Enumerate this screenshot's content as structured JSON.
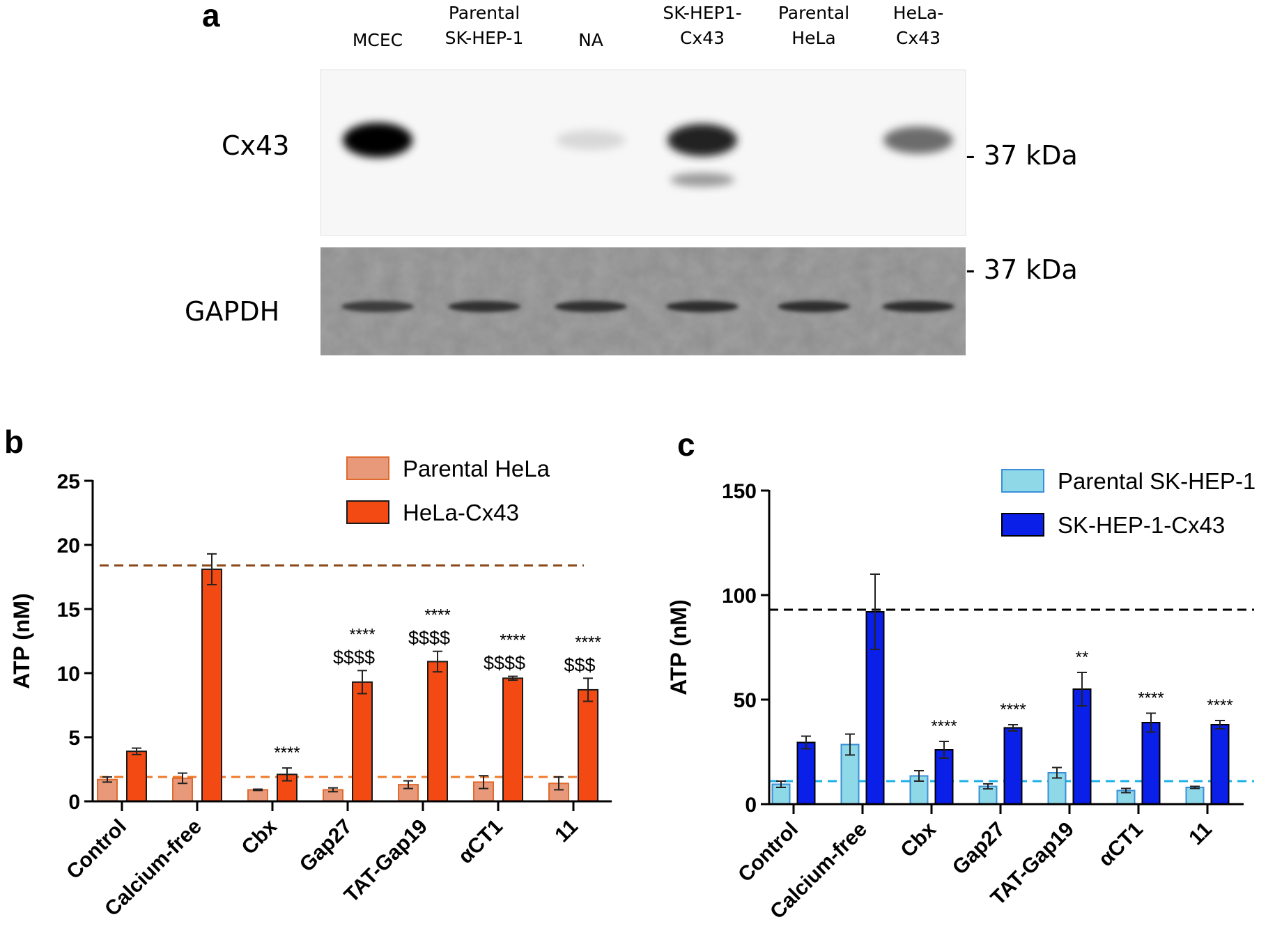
{
  "panel_a": {
    "letter": "a",
    "lanes": [
      {
        "line1": "MCEC",
        "line2": ""
      },
      {
        "line1": "Parental",
        "line2": "SK-HEP-1"
      },
      {
        "line1": "NA",
        "line2": ""
      },
      {
        "line1": "SK-HEP1-",
        "line2": "Cx43"
      },
      {
        "line1": "Parental",
        "line2": "HeLa"
      },
      {
        "line1": "HeLa-",
        "line2": "Cx43"
      }
    ],
    "blots": {
      "top_label": "Cx43",
      "bottom_label": "GAPDH"
    },
    "markers": {
      "top": "- 37 kDa",
      "bottom": "- 37 kDa"
    },
    "cx43_band_intensity": [
      1.0,
      0.0,
      0.1,
      0.85,
      0.0,
      0.55
    ],
    "gapdh_band_intensity": [
      0.6,
      0.7,
      0.7,
      0.75,
      0.75,
      0.75
    ]
  },
  "chart_data": [
    {
      "panel": "b",
      "type": "bar",
      "ylabel": "ATP (nM)",
      "ylim": [
        0,
        25
      ],
      "yticks": [
        0,
        5,
        10,
        15,
        20,
        25
      ],
      "categories": [
        "Control",
        "Calcium-free",
        "Cbx",
        "Gap27",
        "TAT-Gap19",
        "αCT1",
        "11"
      ],
      "series": [
        {
          "name": "Parental HeLa",
          "color": "#E8997A",
          "edge": "#E06A2E",
          "values": [
            1.7,
            1.8,
            0.9,
            0.9,
            1.3,
            1.5,
            1.4
          ],
          "errors": [
            0.2,
            0.4,
            0.05,
            0.15,
            0.3,
            0.5,
            0.5
          ]
        },
        {
          "name": "HeLa-Cx43",
          "color": "#F24A12",
          "edge": "#1a1a1a",
          "values": [
            3.9,
            18.1,
            2.1,
            9.3,
            10.9,
            9.6,
            8.7
          ],
          "errors": [
            0.25,
            1.2,
            0.5,
            0.9,
            0.8,
            0.15,
            0.9
          ]
        }
      ],
      "reference_lines": [
        {
          "y": 18.4,
          "color": "#8B4A1C"
        },
        {
          "y": 1.9,
          "color": "#F07A2A"
        }
      ],
      "annotations": [
        {
          "category": "Cbx",
          "lines": [
            "****"
          ]
        },
        {
          "category": "Gap27",
          "lines": [
            "****",
            "$$$$"
          ]
        },
        {
          "category": "TAT-Gap19",
          "lines": [
            "****",
            "$$$$"
          ]
        },
        {
          "category": "αCT1",
          "lines": [
            "****",
            "$$$$"
          ]
        },
        {
          "category": "11",
          "lines": [
            "****",
            "$$$"
          ]
        }
      ],
      "legend_position": "top-right"
    },
    {
      "panel": "c",
      "type": "bar",
      "ylabel": "ATP (nM)",
      "ylim": [
        0,
        150
      ],
      "yticks": [
        0,
        50,
        100,
        150
      ],
      "categories": [
        "Control",
        "Calcium-free",
        "Cbx",
        "Gap27",
        "TAT-Gap19",
        "αCT1",
        "11"
      ],
      "series": [
        {
          "name": "Parental SK-HEP-1",
          "color": "#8FD8E8",
          "edge": "#3A8FD6",
          "values": [
            9.5,
            28.5,
            13.5,
            8.5,
            15,
            6.5,
            8
          ],
          "errors": [
            1.5,
            5,
            2.5,
            1.2,
            2.5,
            1,
            0.5
          ]
        },
        {
          "name": "SK-HEP-1-Cx43",
          "color": "#0A1FE8",
          "edge": "#000000",
          "values": [
            29.5,
            92,
            26,
            36.5,
            55,
            39,
            38
          ],
          "errors": [
            3,
            18,
            4,
            1.5,
            8,
            4.5,
            2
          ]
        }
      ],
      "reference_lines": [
        {
          "y": 93,
          "color": "#000000"
        },
        {
          "y": 11,
          "color": "#1BB0E8"
        }
      ],
      "annotations": [
        {
          "category": "Cbx",
          "lines": [
            "****"
          ]
        },
        {
          "category": "Gap27",
          "lines": [
            "****"
          ]
        },
        {
          "category": "TAT-Gap19",
          "lines": [
            "**"
          ]
        },
        {
          "category": "αCT1",
          "lines": [
            "****"
          ]
        },
        {
          "category": "11",
          "lines": [
            "****"
          ]
        }
      ],
      "legend_position": "top-right"
    }
  ]
}
